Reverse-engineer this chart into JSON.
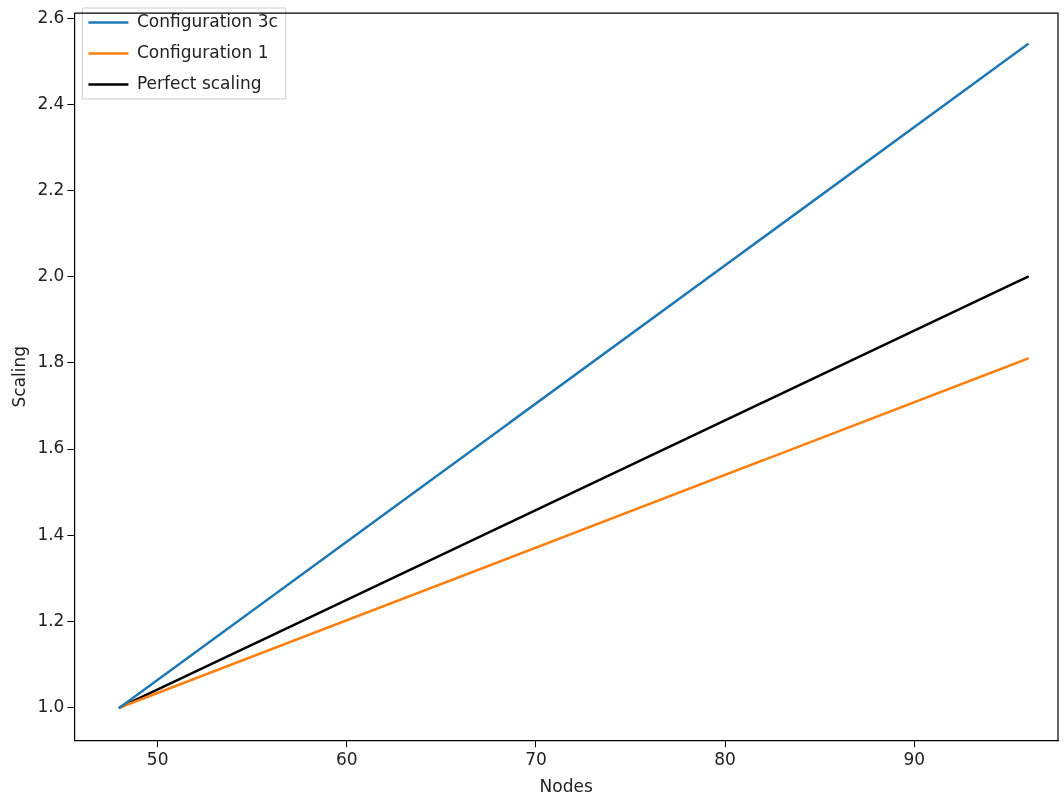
{
  "chart_data": {
    "type": "line",
    "xlabel": "Nodes",
    "ylabel": "Scaling",
    "x": [
      48,
      96
    ],
    "series": [
      {
        "name": "Configuration 3c",
        "color": "#1f77b4",
        "values": [
          1.0,
          2.54
        ]
      },
      {
        "name": "Configuration 1",
        "color": "#ff7f0e",
        "values": [
          1.0,
          1.81
        ]
      },
      {
        "name": "Perfect scaling",
        "color": "#000000",
        "values": [
          1.0,
          2.0
        ]
      }
    ],
    "xlim": [
      45.6,
      97.6
    ],
    "xticks": [
      50,
      60,
      70,
      80,
      90
    ],
    "ylim": [
      0.924,
      2.612
    ],
    "yticks": [
      {
        "value": 1,
        "label": "1.0"
      },
      1.2,
      1.4,
      1.6,
      1.8,
      {
        "value": 2,
        "label": "2.0"
      },
      2.2,
      2.4,
      2.6
    ],
    "grid": false,
    "legend": "top left",
    "marker": "none",
    "line_style": "solid"
  }
}
